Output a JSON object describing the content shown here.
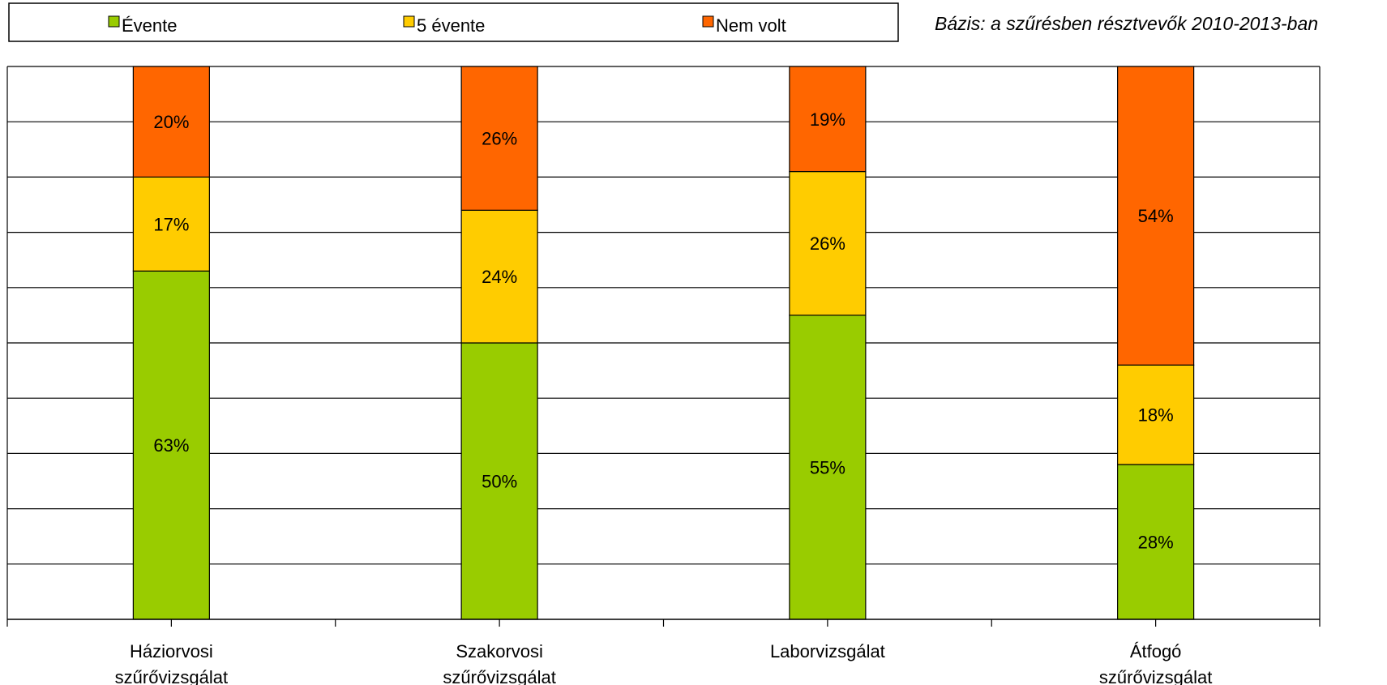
{
  "note": "Bázis: a szűrésben résztvevők 2010-2013-ban",
  "colors": {
    "evente": "#99CC00",
    "5evente": "#FFCC00",
    "nemvolt": "#FF6600",
    "grid": "#000000"
  },
  "chart_data": {
    "type": "bar",
    "stacked": true,
    "normalized": true,
    "categories": [
      [
        "Háziorvosi",
        "szűrővizsgálat"
      ],
      [
        "Szakorvosi",
        "szűrővizsgálat"
      ],
      [
        "Laborvizsgálat"
      ],
      [
        "Átfogó",
        "szűrővizsgálat"
      ]
    ],
    "series": [
      {
        "name": "Évente",
        "key": "evente",
        "values": [
          63,
          50,
          55,
          28
        ]
      },
      {
        "name": "5 évente",
        "key": "5evente",
        "values": [
          17,
          24,
          26,
          18
        ]
      },
      {
        "name": "Nem volt",
        "key": "nemvolt",
        "values": [
          20,
          26,
          19,
          54
        ]
      }
    ],
    "ylim": [
      0,
      100
    ],
    "grid": true,
    "legend": "top",
    "value_format": "percent"
  }
}
